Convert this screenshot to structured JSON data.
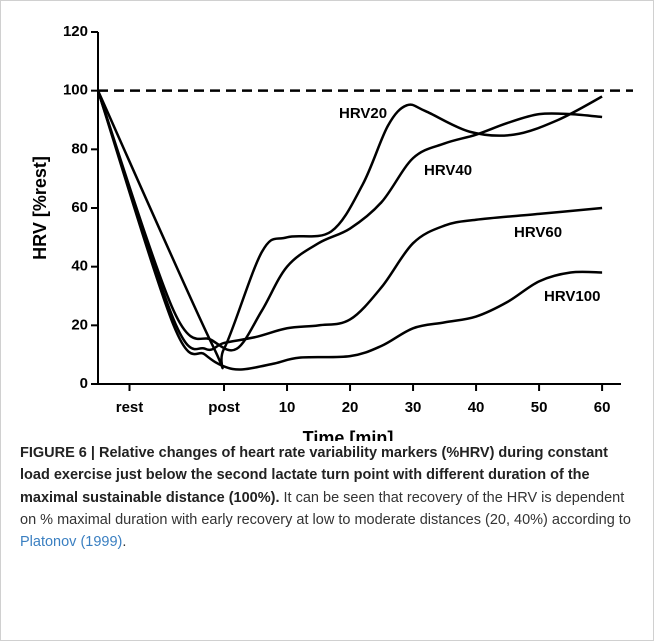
{
  "chart_data": {
    "type": "line",
    "xlabel": "Time [min]",
    "ylabel": "HRV [%rest]",
    "xlim": [
      -20,
      63
    ],
    "ylim": [
      0,
      120
    ],
    "xticks": [
      {
        "value": -15,
        "label": "rest"
      },
      {
        "value": 0,
        "label": "post"
      },
      10,
      20,
      30,
      40,
      50,
      60
    ],
    "yticks": [
      0,
      20,
      40,
      60,
      80,
      100,
      120
    ],
    "hline": 100,
    "series": [
      {
        "name": "HRV20",
        "color": "#000000",
        "x": [
          -20,
          -2,
          0,
          6,
          10,
          17,
          22,
          26,
          29,
          32,
          39,
          46,
          53,
          60
        ],
        "values": [
          100,
          14,
          12,
          45,
          50,
          52,
          68,
          88,
          95,
          93,
          86,
          85,
          90,
          98
        ]
      },
      {
        "name": "HRV40",
        "color": "#000000",
        "x": [
          -20,
          -8,
          -2,
          2,
          6,
          10,
          15,
          20,
          25,
          30,
          35,
          40,
          45,
          50,
          55,
          60
        ],
        "values": [
          100,
          25,
          15,
          12,
          25,
          40,
          48,
          53,
          62,
          77,
          82,
          85,
          89,
          92,
          92,
          91
        ]
      },
      {
        "name": "HRV60",
        "color": "#000000",
        "x": [
          -20,
          -8,
          -3,
          0,
          5,
          10,
          15,
          20,
          25,
          30,
          35,
          40,
          50,
          60
        ],
        "values": [
          100,
          22,
          12,
          14,
          16,
          19,
          20,
          22,
          33,
          48,
          54,
          56,
          58,
          60
        ]
      },
      {
        "name": "HRV100",
        "color": "#000000",
        "x": [
          -20,
          -8,
          -3,
          0,
          3,
          8,
          12,
          20,
          25,
          30,
          35,
          40,
          45,
          50,
          55,
          60
        ],
        "values": [
          100,
          20,
          10,
          6,
          5,
          7,
          9,
          9.5,
          13,
          19,
          21,
          23,
          28,
          35,
          38,
          38
        ]
      }
    ]
  },
  "caption": {
    "bold": "FIGURE 6 | Relative changes of heart rate variability markers (%HRV) during constant load exercise just below the second lactate turn point with different duration of the maximal sustainable distance (100%).",
    "text": " It can be seen that recovery of the HRV is dependent on % maximal duration with early recovery at low to moderate distances (20, 40%) according to ",
    "link": "Platonov (1999)",
    "end": "."
  }
}
